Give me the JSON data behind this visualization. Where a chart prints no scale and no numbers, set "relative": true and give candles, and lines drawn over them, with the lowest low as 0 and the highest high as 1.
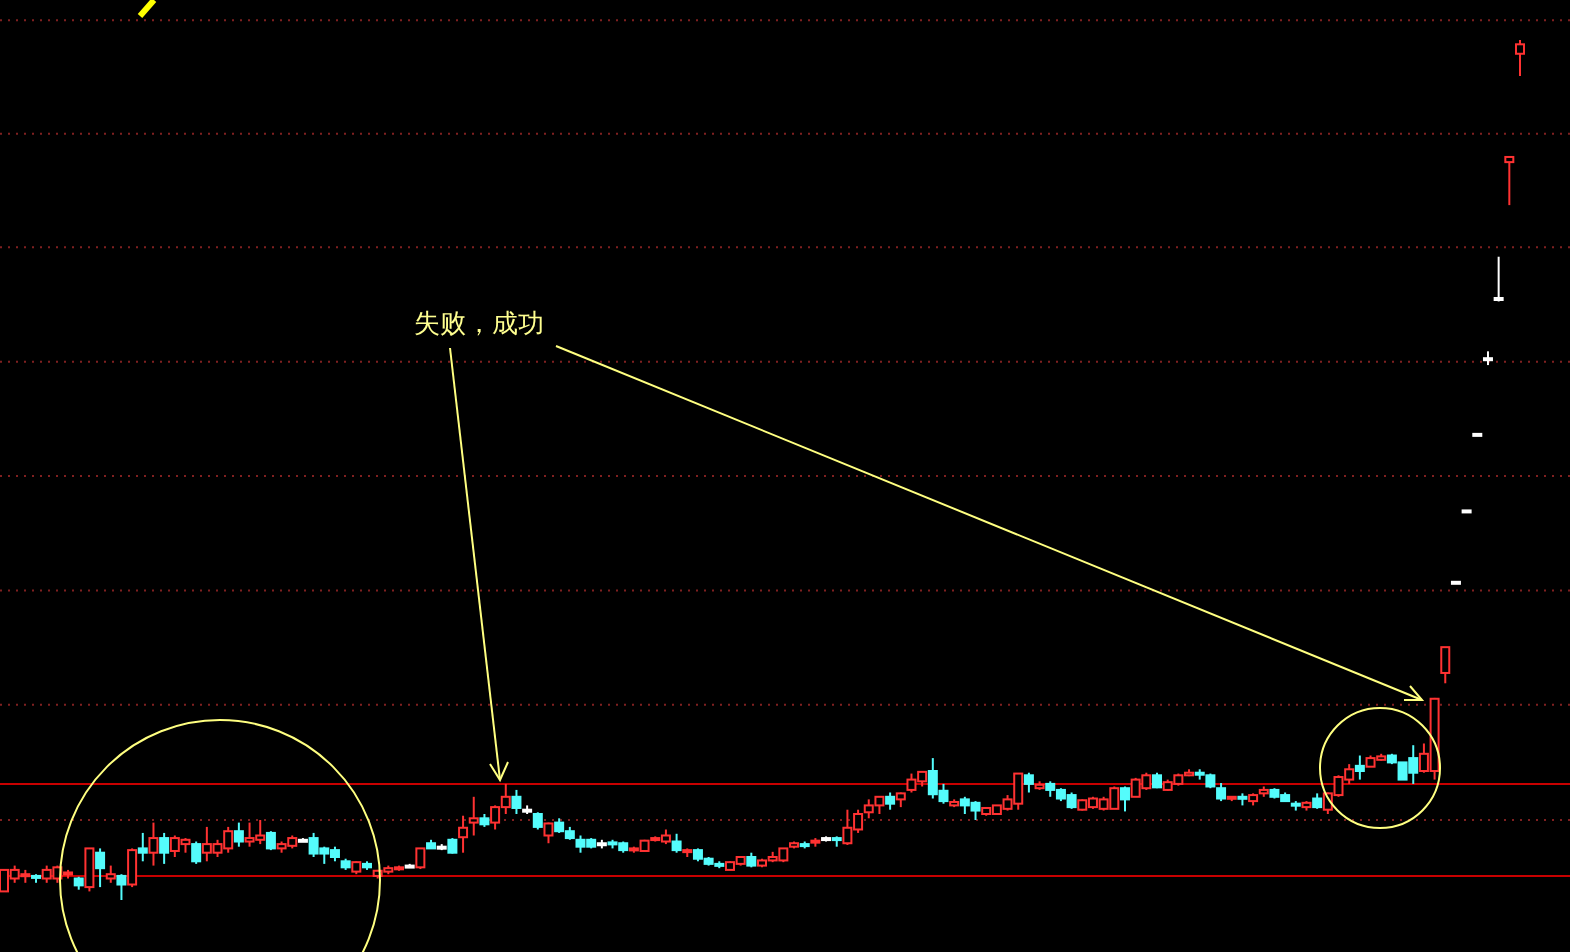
{
  "chart_data": {
    "type": "candlestick",
    "relative": true,
    "annotations": [
      "失败，成功"
    ],
    "ref_lines": [
      {
        "axis": "y",
        "value": 0.028,
        "color": "#c80000"
      },
      {
        "axis": "y",
        "value": 0.135,
        "color": "#c80000"
      },
      {
        "axis": "y",
        "value": 0.093,
        "color": "#802020",
        "line_style": "dotted"
      },
      {
        "axis": "y",
        "value": 0.227,
        "color": "#802020",
        "line_style": "dotted"
      },
      {
        "axis": "y",
        "value": 0.36,
        "color": "#802020",
        "line_style": "dotted"
      },
      {
        "axis": "y",
        "value": 0.493,
        "color": "#802020",
        "line_style": "dotted"
      },
      {
        "axis": "y",
        "value": 0.626,
        "color": "#802020",
        "line_style": "dotted"
      },
      {
        "axis": "y",
        "value": 0.759,
        "color": "#802020",
        "line_style": "dotted"
      },
      {
        "axis": "y",
        "value": 0.891,
        "color": "#802020",
        "line_style": "dotted"
      },
      {
        "axis": "y",
        "value": 1.023,
        "color": "#802020",
        "line_style": "dotted"
      }
    ],
    "categories": [
      null,
      null,
      null,
      null,
      null,
      null,
      null,
      null,
      null,
      null,
      null,
      null,
      null,
      null,
      null,
      null,
      null,
      null,
      null,
      null,
      null,
      null,
      null,
      null,
      null,
      null,
      null,
      null,
      null,
      null,
      null,
      null,
      null,
      null,
      null,
      null,
      null,
      null,
      null,
      null,
      null,
      null,
      null,
      null,
      null,
      null,
      null,
      null,
      null,
      null,
      null,
      null,
      null,
      null,
      null,
      null,
      null,
      null,
      null,
      null,
      null,
      null,
      null,
      null,
      null,
      null,
      null,
      null,
      null,
      null,
      null,
      null,
      null,
      null,
      null,
      null,
      null,
      null,
      null,
      null,
      null,
      null,
      null,
      null,
      null,
      null,
      null,
      null,
      null,
      null,
      null,
      null,
      null,
      null,
      null,
      null,
      null,
      null,
      null,
      null,
      null,
      null,
      null,
      null,
      null,
      null,
      null,
      null,
      null,
      null,
      null,
      null,
      null,
      null,
      null,
      null,
      null,
      null,
      null,
      null,
      null,
      null,
      null,
      null,
      null,
      null,
      null,
      null,
      null,
      null,
      null,
      null,
      null,
      null,
      null,
      null,
      null,
      null,
      null,
      null,
      null,
      null,
      null
    ],
    "ohlc": [
      [
        0.01,
        0.035,
        0.01,
        0.035
      ],
      [
        0.025,
        0.04,
        0.02,
        0.035
      ],
      [
        0.028,
        0.035,
        0.02,
        0.03
      ],
      [
        0.028,
        0.03,
        0.02,
        0.026
      ],
      [
        0.025,
        0.04,
        0.02,
        0.035
      ],
      [
        0.025,
        0.04,
        0.02,
        0.038
      ],
      [
        0.03,
        0.035,
        0.025,
        0.032
      ],
      [
        0.025,
        0.027,
        0.012,
        0.017
      ],
      [
        0.015,
        0.06,
        0.01,
        0.06
      ],
      [
        0.055,
        0.06,
        0.015,
        0.037
      ],
      [
        0.025,
        0.04,
        0.02,
        0.03
      ],
      [
        0.028,
        0.03,
        0.0,
        0.018
      ],
      [
        0.018,
        0.06,
        0.015,
        0.058
      ],
      [
        0.06,
        0.078,
        0.045,
        0.055
      ],
      [
        0.055,
        0.09,
        0.04,
        0.072
      ],
      [
        0.072,
        0.078,
        0.042,
        0.055
      ],
      [
        0.057,
        0.075,
        0.05,
        0.072
      ],
      [
        0.065,
        0.072,
        0.055,
        0.07
      ],
      [
        0.065,
        0.068,
        0.042,
        0.045
      ],
      [
        0.055,
        0.085,
        0.045,
        0.065
      ],
      [
        0.055,
        0.07,
        0.05,
        0.065
      ],
      [
        0.06,
        0.085,
        0.055,
        0.08
      ],
      [
        0.08,
        0.09,
        0.062,
        0.068
      ],
      [
        0.068,
        0.09,
        0.062,
        0.072
      ],
      [
        0.07,
        0.093,
        0.065,
        0.075
      ],
      [
        0.078,
        0.08,
        0.058,
        0.06
      ],
      [
        0.06,
        0.068,
        0.055,
        0.065
      ],
      [
        0.063,
        0.075,
        0.06,
        0.072
      ],
      [
        0.07,
        0.072,
        0.068,
        0.07
      ],
      [
        0.072,
        0.078,
        0.05,
        0.054
      ],
      [
        0.06,
        0.062,
        0.042,
        0.054
      ],
      [
        0.058,
        0.062,
        0.045,
        0.05
      ],
      [
        0.045,
        0.048,
        0.035,
        0.038
      ],
      [
        0.033,
        0.045,
        0.03,
        0.044
      ],
      [
        0.042,
        0.045,
        0.035,
        0.038
      ],
      [
        0.028,
        0.035,
        0.025,
        0.034
      ],
      [
        0.033,
        0.04,
        0.03,
        0.037
      ],
      [
        0.036,
        0.04,
        0.034,
        0.038
      ],
      [
        0.04,
        0.042,
        0.038,
        0.04
      ],
      [
        0.038,
        0.06,
        0.036,
        0.06
      ],
      [
        0.066,
        0.07,
        0.06,
        0.06
      ],
      [
        0.062,
        0.065,
        0.058,
        0.062
      ],
      [
        0.07,
        0.072,
        0.054,
        0.055
      ],
      [
        0.073,
        0.098,
        0.055,
        0.084
      ],
      [
        0.09,
        0.12,
        0.075,
        0.095
      ],
      [
        0.095,
        0.1,
        0.085,
        0.088
      ],
      [
        0.09,
        0.11,
        0.082,
        0.108
      ],
      [
        0.108,
        0.135,
        0.1,
        0.12
      ],
      [
        0.12,
        0.128,
        0.1,
        0.107
      ],
      [
        0.105,
        0.11,
        0.1,
        0.105
      ],
      [
        0.1,
        0.102,
        0.082,
        0.085
      ],
      [
        0.075,
        0.09,
        0.066,
        0.089
      ],
      [
        0.09,
        0.095,
        0.078,
        0.08
      ],
      [
        0.08,
        0.085,
        0.07,
        0.072
      ],
      [
        0.07,
        0.075,
        0.055,
        0.062
      ],
      [
        0.07,
        0.072,
        0.06,
        0.062
      ],
      [
        0.066,
        0.07,
        0.06,
        0.066
      ],
      [
        0.067,
        0.07,
        0.06,
        0.066
      ],
      [
        0.066,
        0.068,
        0.055,
        0.058
      ],
      [
        0.058,
        0.062,
        0.055,
        0.06
      ],
      [
        0.057,
        0.07,
        0.057,
        0.069
      ],
      [
        0.07,
        0.074,
        0.068,
        0.072
      ],
      [
        0.068,
        0.082,
        0.065,
        0.075
      ],
      [
        0.068,
        0.077,
        0.055,
        0.058
      ],
      [
        0.056,
        0.06,
        0.05,
        0.058
      ],
      [
        0.058,
        0.06,
        0.045,
        0.048
      ],
      [
        0.048,
        0.05,
        0.04,
        0.042
      ],
      [
        0.042,
        0.045,
        0.037,
        0.04
      ],
      [
        0.035,
        0.045,
        0.035,
        0.044
      ],
      [
        0.042,
        0.05,
        0.04,
        0.05
      ],
      [
        0.05,
        0.055,
        0.038,
        0.04
      ],
      [
        0.04,
        0.048,
        0.038,
        0.046
      ],
      [
        0.046,
        0.056,
        0.044,
        0.05
      ],
      [
        0.046,
        0.06,
        0.044,
        0.06
      ],
      [
        0.062,
        0.068,
        0.06,
        0.066
      ],
      [
        0.065,
        0.068,
        0.06,
        0.064
      ],
      [
        0.068,
        0.072,
        0.062,
        0.069
      ],
      [
        0.072,
        0.074,
        0.068,
        0.072
      ],
      [
        0.072,
        0.074,
        0.062,
        0.07
      ],
      [
        0.066,
        0.105,
        0.064,
        0.084
      ],
      [
        0.082,
        0.105,
        0.078,
        0.1
      ],
      [
        0.102,
        0.117,
        0.095,
        0.11
      ],
      [
        0.11,
        0.12,
        0.1,
        0.12
      ],
      [
        0.12,
        0.125,
        0.105,
        0.112
      ],
      [
        0.117,
        0.125,
        0.108,
        0.124
      ],
      [
        0.128,
        0.147,
        0.125,
        0.14
      ],
      [
        0.138,
        0.15,
        0.132,
        0.149
      ],
      [
        0.15,
        0.165,
        0.118,
        0.123
      ],
      [
        0.127,
        0.135,
        0.112,
        0.115
      ],
      [
        0.11,
        0.117,
        0.108,
        0.114
      ],
      [
        0.117,
        0.12,
        0.1,
        0.11
      ],
      [
        0.113,
        0.115,
        0.093,
        0.104
      ],
      [
        0.1,
        0.108,
        0.098,
        0.107
      ],
      [
        0.1,
        0.11,
        0.1,
        0.11
      ],
      [
        0.106,
        0.122,
        0.104,
        0.117
      ],
      [
        0.112,
        0.147,
        0.105,
        0.147
      ],
      [
        0.145,
        0.148,
        0.125,
        0.135
      ],
      [
        0.13,
        0.138,
        0.128,
        0.134
      ],
      [
        0.135,
        0.138,
        0.12,
        0.128
      ],
      [
        0.128,
        0.13,
        0.115,
        0.118
      ],
      [
        0.122,
        0.125,
        0.106,
        0.108
      ],
      [
        0.105,
        0.117,
        0.104,
        0.116
      ],
      [
        0.108,
        0.12,
        0.106,
        0.118
      ],
      [
        0.106,
        0.12,
        0.104,
        0.117
      ],
      [
        0.106,
        0.132,
        0.106,
        0.13
      ],
      [
        0.13,
        0.132,
        0.103,
        0.117
      ],
      [
        0.12,
        0.142,
        0.12,
        0.14
      ],
      [
        0.13,
        0.148,
        0.128,
        0.145
      ],
      [
        0.145,
        0.148,
        0.13,
        0.131
      ],
      [
        0.128,
        0.14,
        0.127,
        0.137
      ],
      [
        0.135,
        0.147,
        0.133,
        0.145
      ],
      [
        0.145,
        0.152,
        0.144,
        0.148
      ],
      [
        0.148,
        0.152,
        0.14,
        0.147
      ],
      [
        0.145,
        0.147,
        0.13,
        0.132
      ],
      [
        0.13,
        0.136,
        0.115,
        0.118
      ],
      [
        0.118,
        0.12,
        0.115,
        0.12
      ],
      [
        0.12,
        0.124,
        0.11,
        0.118
      ],
      [
        0.115,
        0.124,
        0.11,
        0.122
      ],
      [
        0.124,
        0.132,
        0.12,
        0.128
      ],
      [
        0.128,
        0.13,
        0.118,
        0.12
      ],
      [
        0.122,
        0.125,
        0.114,
        0.115
      ],
      [
        0.112,
        0.115,
        0.104,
        0.11
      ],
      [
        0.108,
        0.115,
        0.104,
        0.113
      ],
      [
        0.118,
        0.124,
        0.106,
        0.108
      ],
      [
        0.105,
        0.125,
        0.1,
        0.124
      ],
      [
        0.122,
        0.145,
        0.12,
        0.143
      ],
      [
        0.14,
        0.158,
        0.135,
        0.152
      ],
      [
        0.156,
        0.168,
        0.14,
        0.15
      ],
      [
        0.155,
        0.168,
        0.155,
        0.165
      ],
      [
        0.163,
        0.17,
        0.162,
        0.167
      ],
      [
        0.168,
        0.17,
        0.158,
        0.16
      ],
      [
        0.16,
        0.16,
        0.14,
        0.14
      ],
      [
        0.165,
        0.18,
        0.135,
        0.148
      ],
      [
        0.15,
        0.182,
        0.148,
        0.17
      ],
      [
        0.15,
        0.235,
        0.14,
        0.234
      ],
      [
        0.264,
        0.294,
        0.252,
        0.294
      ],
      [
        0.37,
        0.37,
        0.37,
        0.37
      ],
      [
        0.453,
        0.453,
        0.453,
        0.453
      ],
      [
        0.542,
        0.542,
        0.542,
        0.542
      ],
      [
        0.63,
        0.638,
        0.622,
        0.63
      ],
      [
        0.7,
        0.748,
        0.696,
        0.7
      ],
      [
        0.858,
        0.865,
        0.808,
        0.864
      ],
      [
        0.984,
        1.0,
        0.958,
        0.995
      ]
    ]
  }
}
